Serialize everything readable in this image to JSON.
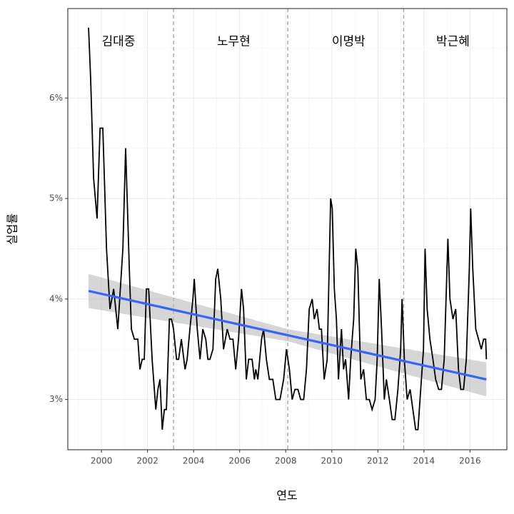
{
  "chart_data": {
    "type": "line",
    "x_label": "연도",
    "y_label": "실업률",
    "xlim": [
      1998.54,
      2017.6
    ],
    "ylim": [
      2.5,
      6.89
    ],
    "xticks": [
      2000,
      2002,
      2004,
      2006,
      2008,
      2010,
      2012,
      2014,
      2016
    ],
    "x_minor_ticks": [
      1999,
      2001,
      2003,
      2005,
      2007,
      2009,
      2011,
      2013,
      2015,
      2017
    ],
    "yticks": [
      {
        "value": 3,
        "label": "3%"
      },
      {
        "value": 4,
        "label": "4%"
      },
      {
        "value": 5,
        "label": "5%"
      },
      {
        "value": 6,
        "label": "6%"
      }
    ],
    "y_minor_ticks": [
      3.5,
      4.5,
      5.5,
      6.5
    ],
    "grid": true,
    "color": "#000000",
    "x": [
      1999.44,
      1999.53,
      1999.66,
      1999.81,
      1999.94,
      2000.06,
      2000.22,
      2000.37,
      2000.53,
      2000.71,
      2000.93,
      2001.05,
      2001.21,
      2001.3,
      2001.43,
      2001.58,
      2001.67,
      2001.77,
      2001.86,
      2001.95,
      2002.05,
      2002.2,
      2002.36,
      2002.45,
      2002.54,
      2002.64,
      2002.73,
      2002.82,
      2002.95,
      2003.04,
      2003.13,
      2003.26,
      2003.35,
      2003.47,
      2003.63,
      2003.72,
      2003.84,
      2003.97,
      2004.03,
      2004.16,
      2004.28,
      2004.4,
      2004.53,
      2004.62,
      2004.71,
      2004.84,
      2004.96,
      2005.05,
      2005.18,
      2005.3,
      2005.46,
      2005.58,
      2005.71,
      2005.83,
      2005.95,
      2006.08,
      2006.17,
      2006.29,
      2006.39,
      2006.54,
      2006.64,
      2006.7,
      2006.79,
      2006.95,
      2007.04,
      2007.16,
      2007.29,
      2007.44,
      2007.57,
      2007.75,
      2007.91,
      2008.03,
      2008.16,
      2008.28,
      2008.4,
      2008.53,
      2008.65,
      2008.78,
      2008.9,
      2009.02,
      2009.15,
      2009.24,
      2009.36,
      2009.46,
      2009.55,
      2009.67,
      2009.8,
      2009.95,
      2010.02,
      2010.11,
      2010.2,
      2010.29,
      2010.42,
      2010.51,
      2010.6,
      2010.73,
      2010.82,
      2010.95,
      2011.04,
      2011.13,
      2011.26,
      2011.38,
      2011.5,
      2011.63,
      2011.75,
      2011.88,
      2011.97,
      2012.06,
      2012.16,
      2012.28,
      2012.37,
      2012.5,
      2012.62,
      2012.74,
      2012.87,
      2012.99,
      2013.05,
      2013.15,
      2013.27,
      2013.4,
      2013.52,
      2013.64,
      2013.74,
      2013.86,
      2013.98,
      2014.05,
      2014.14,
      2014.26,
      2014.39,
      2014.51,
      2014.64,
      2014.76,
      2014.88,
      2015.04,
      2015.13,
      2015.26,
      2015.38,
      2015.5,
      2015.6,
      2015.72,
      2015.84,
      2015.97,
      2016.03,
      2016.12,
      2016.25,
      2016.37,
      2016.49,
      2016.59,
      2016.68,
      2016.71
    ],
    "values": [
      6.7,
      6.2,
      5.2,
      4.8,
      5.7,
      5.7,
      4.5,
      3.9,
      4.1,
      3.7,
      4.5,
      5.5,
      4.3,
      3.7,
      3.6,
      3.6,
      3.3,
      3.4,
      3.4,
      4.1,
      4.1,
      3.4,
      2.9,
      3.1,
      3.2,
      2.7,
      2.9,
      2.9,
      3.8,
      3.8,
      3.7,
      3.4,
      3.4,
      3.6,
      3.3,
      3.4,
      3.7,
      4.0,
      4.2,
      3.7,
      3.4,
      3.7,
      3.6,
      3.4,
      3.4,
      3.5,
      4.2,
      4.3,
      4.0,
      3.5,
      3.7,
      3.6,
      3.6,
      3.3,
      3.6,
      4.1,
      3.9,
      3.2,
      3.4,
      3.4,
      3.2,
      3.3,
      3.2,
      3.6,
      3.7,
      3.4,
      3.2,
      3.2,
      3.0,
      3.0,
      3.2,
      3.5,
      3.3,
      3.0,
      3.1,
      3.1,
      3.0,
      3.0,
      3.3,
      3.9,
      4.0,
      3.8,
      3.9,
      3.7,
      3.7,
      3.2,
      3.4,
      5.0,
      4.9,
      4.1,
      3.8,
      3.2,
      3.7,
      3.3,
      3.4,
      3.0,
      3.4,
      3.8,
      4.5,
      4.3,
      3.2,
      3.3,
      3.0,
      3.0,
      2.9,
      3.0,
      3.4,
      4.2,
      3.7,
      3.0,
      3.2,
      3.0,
      2.8,
      2.8,
      3.1,
      3.5,
      4.0,
      3.4,
      3.0,
      3.1,
      2.9,
      2.7,
      2.7,
      3.1,
      3.5,
      4.5,
      3.9,
      3.6,
      3.4,
      3.2,
      3.1,
      3.1,
      3.4,
      4.6,
      4.0,
      3.8,
      3.9,
      3.3,
      3.1,
      3.1,
      3.4,
      4.3,
      4.9,
      4.3,
      3.7,
      3.6,
      3.5,
      3.6,
      3.6,
      3.4
    ],
    "trend": {
      "color": "#3366ff",
      "x": [
        1999.44,
        2016.71
      ],
      "values": [
        4.08,
        3.2
      ]
    },
    "trend_band": {
      "color": "#bbbbbb",
      "x": [
        1999.44,
        2008.08,
        2016.71
      ],
      "lower": [
        3.91,
        3.58,
        3.03
      ],
      "upper": [
        4.25,
        3.7,
        3.37
      ]
    },
    "period_breaks": [
      2003.13,
      2008.09,
      2013.12
    ],
    "annotations": [
      {
        "text": "김대중",
        "x": 2000.74,
        "y": 6.56
      },
      {
        "text": "노무현",
        "x": 2005.74,
        "y": 6.56
      },
      {
        "text": "이명박",
        "x": 2010.73,
        "y": 6.56
      },
      {
        "text": "박근혜",
        "x": 2015.26,
        "y": 6.56
      }
    ]
  }
}
